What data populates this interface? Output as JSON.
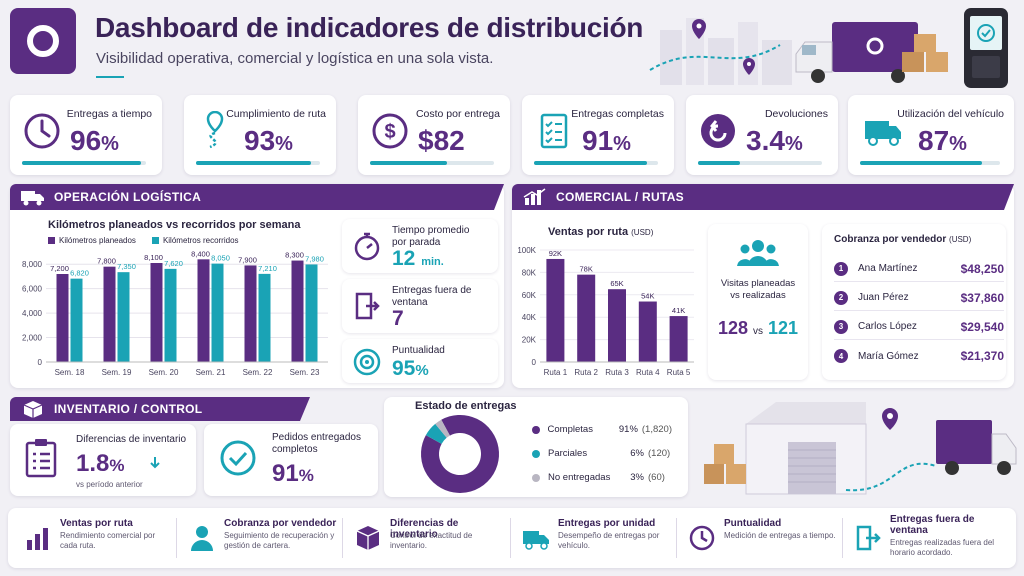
{
  "header": {
    "title": "Dashboard de indicadores de distribución",
    "subtitle": "Visibilidad operativa, comercial y logística en una sola vista."
  },
  "kpis": [
    {
      "label": "Entregas a tiempo",
      "value": "96",
      "unit": "%",
      "icon": "clock-icon",
      "progress": 0.96
    },
    {
      "label": "Cumplimiento de ruta",
      "value": "93",
      "unit": "%",
      "icon": "route-pin-icon",
      "progress": 0.93
    },
    {
      "label": "Costo por entrega",
      "value": "$82",
      "unit": "",
      "icon": "dollar-icon",
      "progress": 0.62
    },
    {
      "label": "Entregas completas",
      "value": "91",
      "unit": "%",
      "icon": "checklist-icon",
      "progress": 0.91
    },
    {
      "label": "Devoluciones",
      "value": "3.4",
      "unit": "%",
      "icon": "return-icon",
      "progress": 0.34
    },
    {
      "label": "Utilización del vehículo",
      "value": "87",
      "unit": "%",
      "icon": "truck-icon",
      "progress": 0.87
    }
  ],
  "operacion": {
    "header": "OPERACIÓN LOGÍSTICA",
    "chart_title": "Kilómetros planeados vs recorridos por semana",
    "mini": [
      {
        "label": "Tiempo promedio por parada",
        "value": "12",
        "unit": "min.",
        "icon": "stopwatch-icon"
      },
      {
        "label": "Entregas fuera de ventana",
        "value": "7",
        "unit": "",
        "icon": "door-exit-icon"
      },
      {
        "label": "Puntualidad",
        "value": "95",
        "unit": "%",
        "icon": "target-icon"
      }
    ]
  },
  "comercial": {
    "header": "COMERCIAL / RUTAS",
    "chart_title": "Ventas por ruta",
    "chart_unit": "(USD)",
    "visitas": {
      "label": "Visitas planeadas vs realizadas",
      "planned": "128",
      "vs": "vs",
      "done": "121"
    },
    "cobranza": {
      "title": "Cobranza por vendedor",
      "unit": "(USD)",
      "rows": [
        {
          "num": "1",
          "name": "Ana Martínez",
          "amount": "$48,250"
        },
        {
          "num": "2",
          "name": "Juan Pérez",
          "amount": "$37,860"
        },
        {
          "num": "3",
          "name": "Carlos López",
          "amount": "$29,540"
        },
        {
          "num": "4",
          "name": "María Gómez",
          "amount": "$21,370"
        }
      ]
    }
  },
  "inventario": {
    "header": "INVENTARIO / CONTROL",
    "diferencias": {
      "label": "Diferencias de inventario",
      "value": "1.8",
      "unit": "%",
      "note": "vs período anterior"
    },
    "pedidos": {
      "label": "Pedidos entregados completos",
      "value": "91",
      "unit": "%"
    }
  },
  "estado": {
    "title": "Estado de entregas",
    "rows": [
      {
        "name": "Completas",
        "pct": "91%",
        "count": "(1,820)",
        "color": "#5a2d82",
        "value": 91
      },
      {
        "name": "Parciales",
        "pct": "6%",
        "count": "(120)",
        "color": "#1aa3b5",
        "value": 6
      },
      {
        "name": "No entregadas",
        "pct": "3%",
        "count": "(60)",
        "color": "#b9b6c2",
        "value": 3
      }
    ]
  },
  "footer": [
    {
      "title": "Ventas por ruta",
      "desc": "Rendimiento comercial por cada ruta.",
      "icon": "bar-chart-icon"
    },
    {
      "title": "Cobranza por vendedor",
      "desc": "Seguimiento de recuperación y gestión de cartera.",
      "icon": "person-icon"
    },
    {
      "title": "Diferencias de inventario",
      "desc": "Control de exactitud de inventario.",
      "icon": "box-icon"
    },
    {
      "title": "Entregas por unidad",
      "desc": "Desempeño de entregas por vehículo.",
      "icon": "truck-icon"
    },
    {
      "title": "Puntualidad",
      "desc": "Medición de entregas a tiempo.",
      "icon": "clock-icon"
    },
    {
      "title": "Entregas fuera de ventana",
      "desc": "Entregas realizadas fuera del horario acordado.",
      "icon": "door-exit-icon"
    }
  ],
  "chart_data": [
    {
      "type": "bar",
      "title": "Kilómetros planeados vs recorridos por semana",
      "categories": [
        "Sem. 18",
        "Sem. 19",
        "Sem. 20",
        "Sem. 21",
        "Sem. 22",
        "Sem. 23"
      ],
      "series": [
        {
          "name": "Kilómetros planeados",
          "values": [
            7200,
            7800,
            8100,
            8400,
            7900,
            8300
          ],
          "labels": [
            "7,200",
            "7,800",
            "8,100",
            "8,400",
            "7,900",
            "8,300"
          ],
          "color": "#5a2d82"
        },
        {
          "name": "Kilómetros recorridos",
          "values": [
            6820,
            7350,
            7620,
            8050,
            7210,
            7980
          ],
          "labels": [
            "6,820",
            "7,350",
            "7,620",
            "8,050",
            "7,210",
            "7,980"
          ],
          "color": "#1aa3b5"
        }
      ],
      "yticks": [
        "0",
        "2,000",
        "4,000",
        "6,000",
        "8,000"
      ],
      "ylim": [
        0,
        9000
      ],
      "legend": "top-left"
    },
    {
      "type": "bar",
      "title": "Ventas por ruta",
      "categories": [
        "Ruta 1",
        "Ruta 2",
        "Ruta 3",
        "Ruta 4",
        "Ruta 5"
      ],
      "values": [
        92,
        78,
        65,
        54,
        41
      ],
      "labels": [
        "92K",
        "78K",
        "65K",
        "54K",
        "41K"
      ],
      "yticks": [
        "0",
        "20K",
        "40K",
        "60K",
        "80K",
        "100K"
      ],
      "ylim": [
        0,
        100
      ]
    },
    {
      "type": "pie",
      "title": "Estado de entregas",
      "categories": [
        "Completas",
        "Parciales",
        "No entregadas"
      ],
      "values": [
        91,
        6,
        3
      ]
    }
  ]
}
